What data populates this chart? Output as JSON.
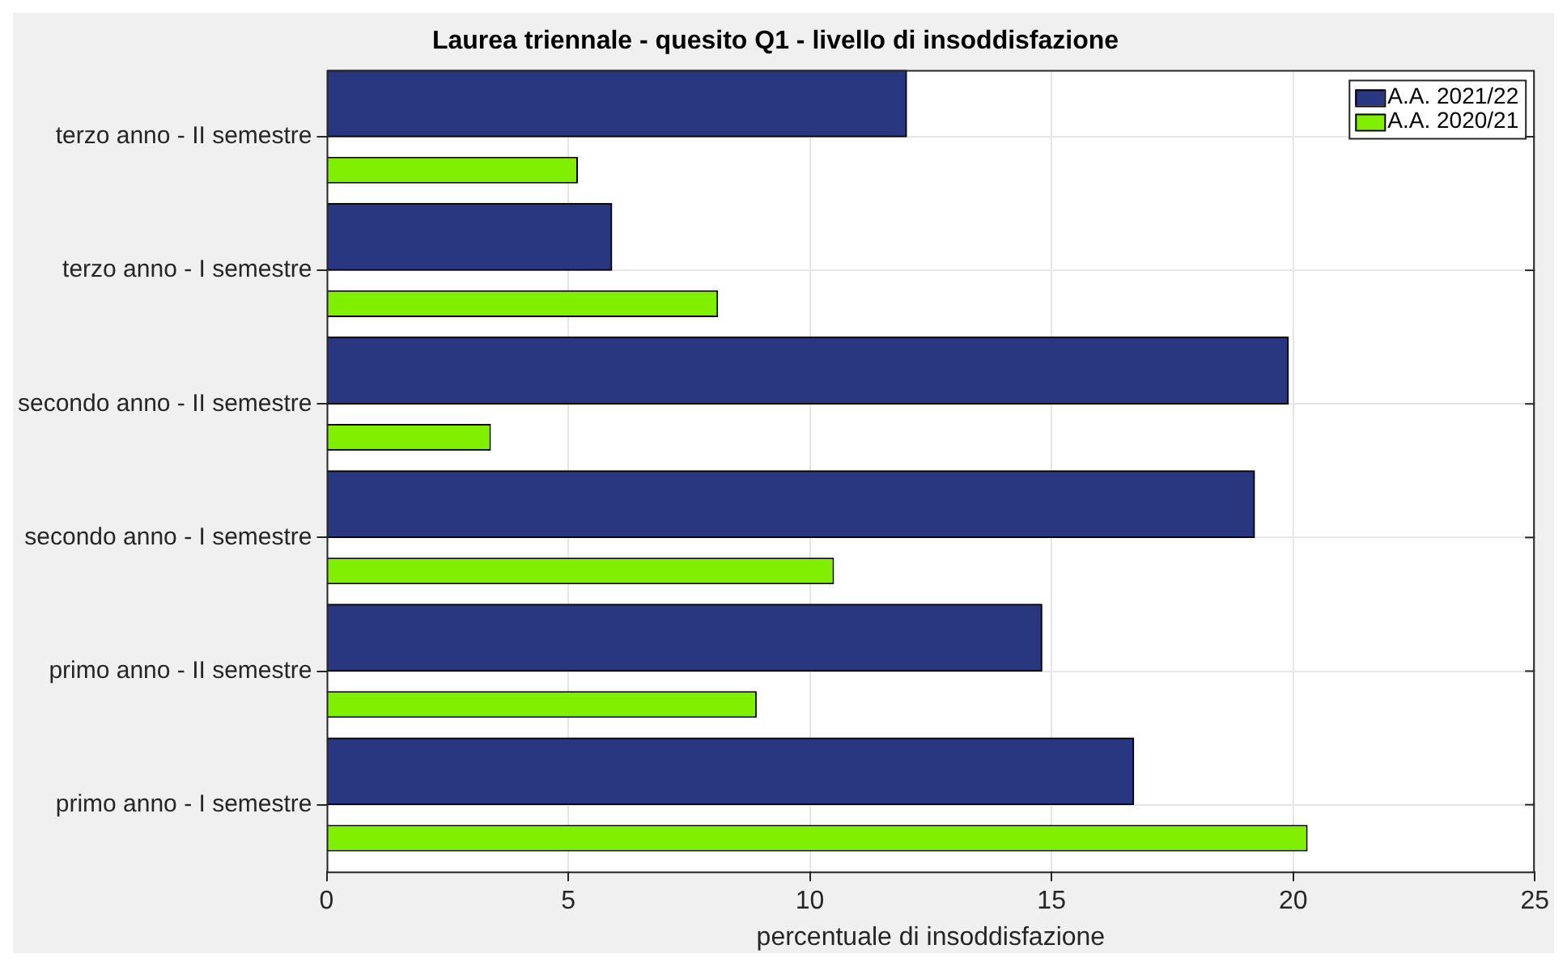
{
  "chart_data": {
    "type": "bar",
    "orientation": "horizontal",
    "title": "Laurea triennale - quesito Q1 - livello di insoddisfazione",
    "xlabel": "percentuale di insoddisfazione",
    "categories": [
      "terzo anno - II semestre",
      "terzo anno - I semestre",
      "secondo anno - II semestre",
      "secondo anno - I semestre",
      "primo anno - II semestre",
      "primo anno - I semestre"
    ],
    "series": [
      {
        "name": "A.A. 2021/22",
        "color": "#283780",
        "values": [
          12.0,
          5.9,
          19.9,
          19.2,
          14.8,
          16.7
        ]
      },
      {
        "name": "A.A. 2020/21",
        "color": "#80f000",
        "values": [
          5.2,
          8.1,
          3.4,
          10.5,
          8.9,
          20.3
        ]
      }
    ],
    "xlim": [
      0,
      25
    ],
    "xticks": [
      0,
      5,
      10,
      15,
      20,
      25
    ],
    "grid": true,
    "legend": "top right"
  }
}
